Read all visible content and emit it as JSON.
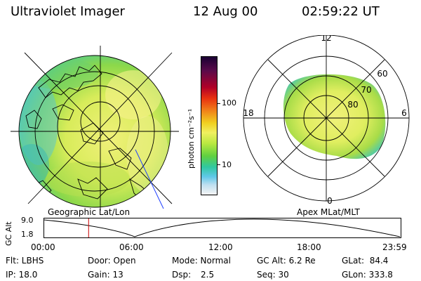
{
  "header": {
    "title": "Ultraviolet Imager",
    "date": "12 Aug 00",
    "time": "02:59:22 UT"
  },
  "left_panel": {
    "caption": "Geographic Lat/Lon"
  },
  "right_panel": {
    "caption": "Apex MLat/MLT",
    "mlt_labels": {
      "top": "12",
      "bottom": "0",
      "left": "18",
      "right": "6"
    },
    "lat_labels": [
      "60",
      "70",
      "80"
    ]
  },
  "colorbar": {
    "unit_label": "photon cm⁻²s⁻¹",
    "tick_labels": [
      "100",
      "10"
    ],
    "scale": "log",
    "colors": [
      "#1a0033",
      "#5a0a4a",
      "#b00028",
      "#e83010",
      "#f07818",
      "#f0d020",
      "#f0f060",
      "#b8e840",
      "#60d040",
      "#30c8a0",
      "#60c8e8",
      "#c0e0f0",
      "#f4f4f4"
    ]
  },
  "gc_alt_plot": {
    "ylabel": "GC Alt",
    "yticks": [
      "9.0",
      "1.8"
    ],
    "xticks": [
      "00:00",
      "06:00",
      "12:00",
      "18:00",
      "23:59"
    ],
    "marker_time_hours": 2.99,
    "marker_color": "#cc0000"
  },
  "info": {
    "row1": {
      "flt": "Flt: LBHS",
      "door": "Door: Open",
      "mode": "Mode: Normal",
      "gcalt": "GC Alt: 6.2 Re",
      "glat": "GLat:  84.4"
    },
    "row2": {
      "ip": "IP: 18.0",
      "gain": "Gain: 13",
      "dsp_label": "Dsp:",
      "dsp_value": "2.5",
      "seq": "Seq: 30",
      "glon": "GLon: 333.8"
    }
  }
}
